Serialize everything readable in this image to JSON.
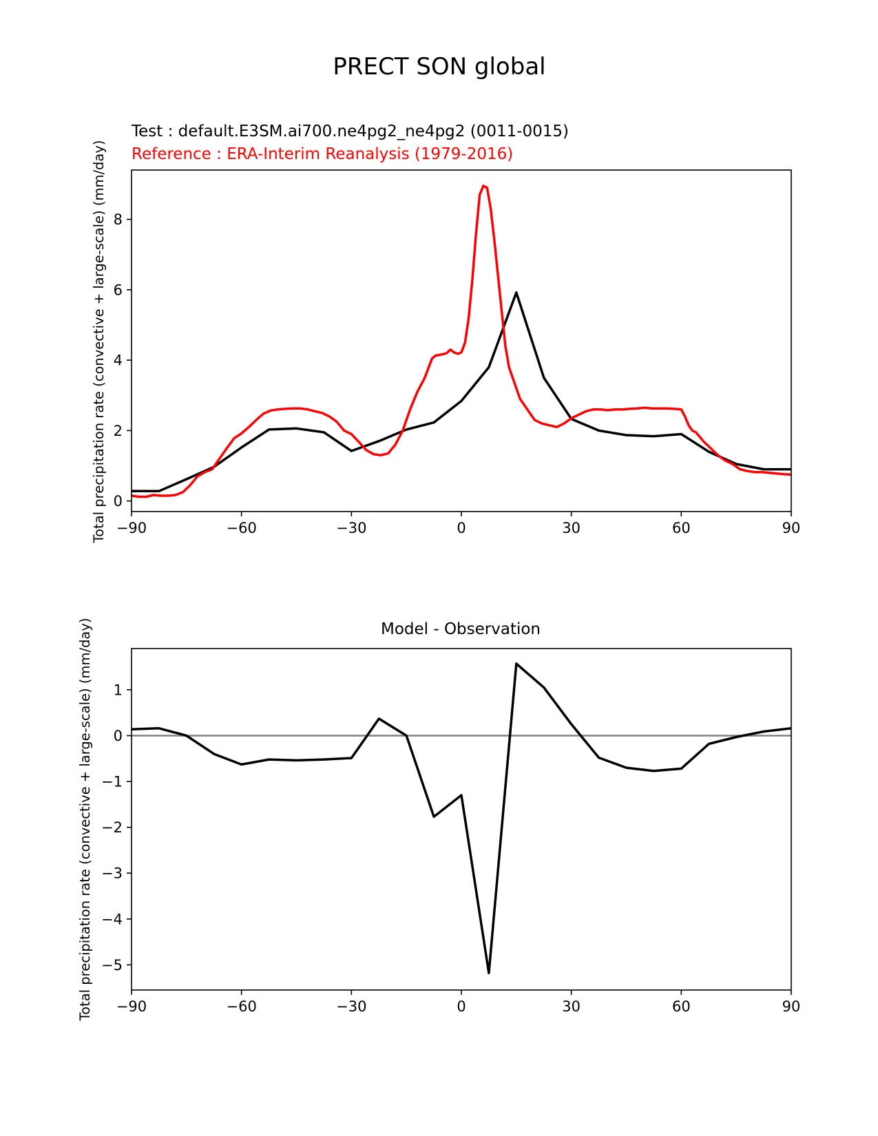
{
  "figure": {
    "title": "PRECT SON global"
  },
  "chart_data": [
    {
      "type": "line",
      "test_label": "Test : default.E3SM.ai700.ne4pg2_ne4pg2 (0011-0015)",
      "ref_label": "Reference : ERA-Interim Reanalysis (1979-2016)",
      "xlabel": "",
      "ylabel": "Total precipitation rate (convective + large-scale) (mm/day)",
      "xlim": [
        -90,
        90
      ],
      "ylim": [
        -0.3,
        9.4
      ],
      "xticks": [
        -90,
        -60,
        -30,
        0,
        30,
        60,
        90
      ],
      "xtick_labels": [
        "−90",
        "−60",
        "−30",
        "0",
        "30",
        "60",
        "90"
      ],
      "yticks": [
        0,
        2,
        4,
        6,
        8
      ],
      "ytick_labels": [
        "0",
        "2",
        "4",
        "6",
        "8"
      ],
      "series": [
        {
          "name": "Test",
          "color": "#000000",
          "x": [
            -90,
            -82.5,
            -75,
            -67.5,
            -60,
            -52.5,
            -45,
            -37.5,
            -30,
            -22.5,
            -15,
            -7.5,
            0,
            7.5,
            15,
            22.5,
            30,
            37.5,
            45,
            52.5,
            60,
            67.5,
            75,
            82.5,
            90
          ],
          "y": [
            0.28,
            0.28,
            0.62,
            0.97,
            1.52,
            2.03,
            2.06,
            1.95,
            1.42,
            1.7,
            2.03,
            2.23,
            2.84,
            3.8,
            5.92,
            3.5,
            2.33,
            2.0,
            1.87,
            1.84,
            1.9,
            1.4,
            1.05,
            0.9,
            0.9
          ]
        },
        {
          "name": "Reference",
          "color": "#ff0000",
          "x": [
            -90,
            -88,
            -86,
            -84,
            -82,
            -80,
            -78,
            -76,
            -74,
            -72,
            -70,
            -68,
            -66,
            -64,
            -62,
            -60,
            -58,
            -56,
            -54,
            -52,
            -50,
            -48,
            -46,
            -44,
            -42,
            -40,
            -38,
            -36,
            -34,
            -32,
            -30,
            -28,
            -26,
            -24,
            -22,
            -20,
            -18,
            -16,
            -14,
            -12,
            -10,
            -8,
            -7,
            -6,
            -5,
            -4,
            -3,
            -2,
            -1,
            0,
            1,
            2,
            3,
            4,
            5,
            6,
            7,
            8,
            9,
            10,
            11,
            12,
            13,
            14,
            15,
            16,
            18,
            20,
            22,
            24,
            26,
            28,
            30,
            32,
            34,
            36,
            38,
            40,
            42,
            44,
            46,
            48,
            50,
            52,
            54,
            56,
            58,
            60,
            61,
            62,
            63,
            64,
            66,
            68,
            70,
            72,
            74,
            76,
            78,
            80,
            82,
            84,
            86,
            88,
            90
          ],
          "y": [
            0.15,
            0.12,
            0.12,
            0.17,
            0.15,
            0.15,
            0.17,
            0.25,
            0.45,
            0.7,
            0.82,
            0.9,
            1.2,
            1.5,
            1.78,
            1.92,
            2.1,
            2.3,
            2.48,
            2.57,
            2.6,
            2.62,
            2.63,
            2.63,
            2.6,
            2.55,
            2.5,
            2.4,
            2.25,
            2.0,
            1.9,
            1.68,
            1.45,
            1.33,
            1.3,
            1.35,
            1.6,
            2.0,
            2.6,
            3.1,
            3.5,
            4.05,
            4.13,
            4.15,
            4.17,
            4.2,
            4.3,
            4.22,
            4.18,
            4.22,
            4.5,
            5.2,
            6.3,
            7.6,
            8.7,
            8.95,
            8.9,
            8.3,
            7.4,
            6.4,
            5.4,
            4.4,
            3.8,
            3.5,
            3.2,
            2.9,
            2.6,
            2.3,
            2.2,
            2.15,
            2.1,
            2.2,
            2.35,
            2.45,
            2.55,
            2.6,
            2.6,
            2.58,
            2.6,
            2.6,
            2.62,
            2.63,
            2.65,
            2.63,
            2.63,
            2.63,
            2.62,
            2.6,
            2.4,
            2.15,
            2.0,
            1.95,
            1.7,
            1.5,
            1.3,
            1.15,
            1.05,
            0.9,
            0.85,
            0.82,
            0.82,
            0.8,
            0.78,
            0.76,
            0.75
          ]
        }
      ]
    },
    {
      "type": "line",
      "title": "Model - Observation",
      "xlabel": "",
      "ylabel": "Total precipitation rate (convective + large-scale) (mm/day)",
      "xlim": [
        -90,
        90
      ],
      "ylim": [
        -5.55,
        1.9
      ],
      "xticks": [
        -90,
        -60,
        -30,
        0,
        30,
        60,
        90
      ],
      "xtick_labels": [
        "−90",
        "−60",
        "−30",
        "0",
        "30",
        "60",
        "90"
      ],
      "yticks": [
        1,
        0,
        -1,
        -2,
        -3,
        -4,
        -5
      ],
      "ytick_labels": [
        "1",
        "0",
        "−1",
        "−2",
        "−3",
        "−4",
        "−5"
      ],
      "zero_line_color": "#808080",
      "series": [
        {
          "name": "Model - Observation",
          "color": "#000000",
          "x": [
            -90,
            -82.5,
            -75,
            -67.5,
            -60,
            -52.5,
            -45,
            -37.5,
            -30,
            -22.5,
            -15,
            -7.5,
            0,
            7.5,
            15,
            22.5,
            30,
            37.5,
            45,
            52.5,
            60,
            67.5,
            75,
            82.5,
            90
          ],
          "y": [
            0.14,
            0.16,
            0.0,
            -0.4,
            -0.63,
            -0.52,
            -0.54,
            -0.52,
            -0.49,
            0.37,
            0.0,
            -1.77,
            -1.3,
            -5.18,
            1.57,
            1.05,
            0.25,
            -0.48,
            -0.7,
            -0.77,
            -0.72,
            -0.18,
            -0.03,
            0.09,
            0.16
          ]
        }
      ]
    }
  ]
}
